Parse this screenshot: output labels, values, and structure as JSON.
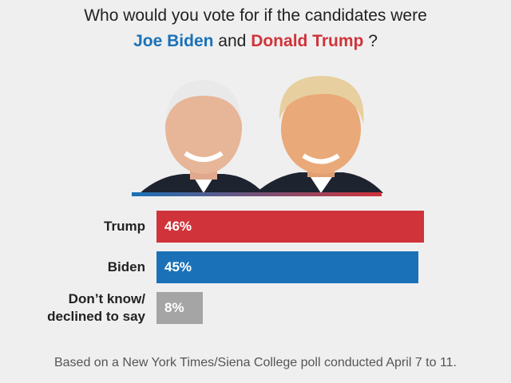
{
  "chart_data": {
    "type": "bar",
    "title": {
      "question": "Who would you vote for if the candidates were",
      "first_name": "Joe Biden",
      "joiner": "and",
      "second_name": "Donald Trump",
      "end": "?"
    },
    "title_colors": {
      "first_name": "#1a71b8",
      "second_name": "#d0333a"
    },
    "categories": [
      "Trump",
      "Biden",
      "Don’t know/\ndeclined to say"
    ],
    "values": [
      46,
      45,
      8
    ],
    "value_labels": [
      "46%",
      "45%",
      "8%"
    ],
    "colors": [
      "#d0333a",
      "#1a71b8",
      "#a5a5a5"
    ],
    "note": "Based on a New York Times/Siena College poll conducted April 7 to 11."
  }
}
